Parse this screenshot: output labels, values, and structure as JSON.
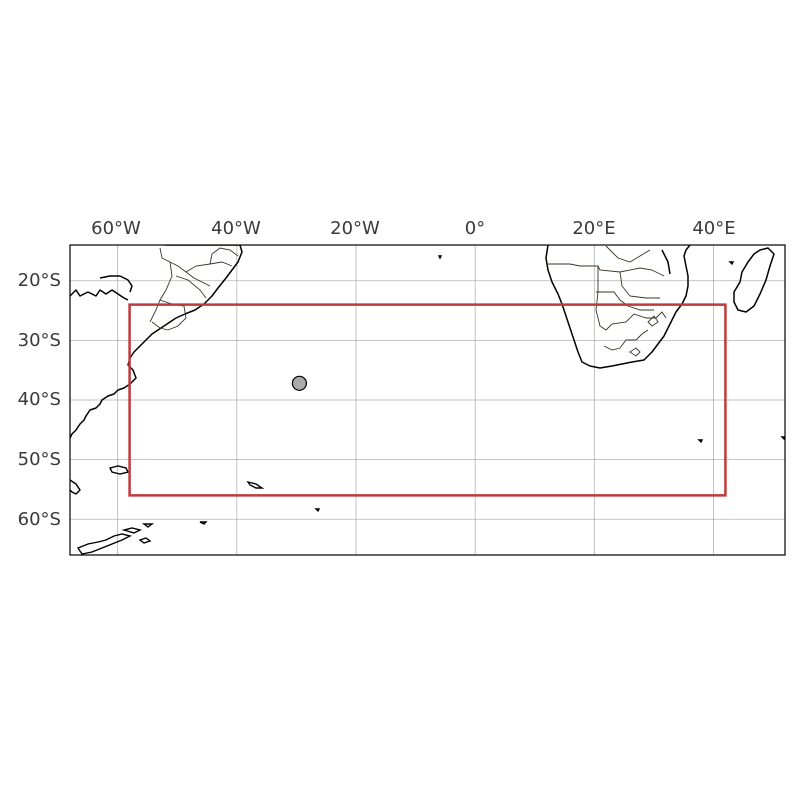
{
  "map": {
    "extent": {
      "lon": [
        -68,
        52
      ],
      "lat": [
        -66,
        -14
      ]
    },
    "lon_ticks": [
      {
        "value": -60,
        "label": "60°W"
      },
      {
        "value": -40,
        "label": "40°W"
      },
      {
        "value": -20,
        "label": "20°W"
      },
      {
        "value": 0,
        "label": "0°"
      },
      {
        "value": 20,
        "label": "20°E"
      },
      {
        "value": 40,
        "label": "40°E"
      }
    ],
    "lat_ticks": [
      {
        "value": -20,
        "label": "20°S"
      },
      {
        "value": -30,
        "label": "30°S"
      },
      {
        "value": -40,
        "label": "40°S"
      },
      {
        "value": -50,
        "label": "50°S"
      },
      {
        "value": -60,
        "label": "60°S"
      }
    ],
    "region_box": {
      "lon_min": -58,
      "lon_max": 42,
      "lat_min": -56,
      "lat_max": -24,
      "color": "#c0393b"
    },
    "marker": {
      "lon": -29.5,
      "lat": -37.2,
      "fill": "#aaaaaa",
      "stroke": "#000000"
    },
    "grid": true,
    "land_fill": "#ffffff",
    "coastline_color": "#000000",
    "border_color": "#2f3a24"
  }
}
